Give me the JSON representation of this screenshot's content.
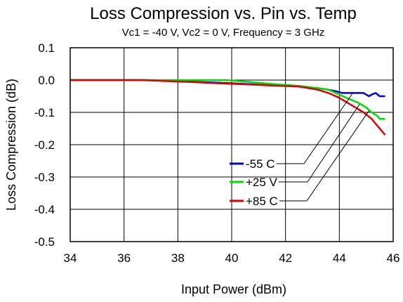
{
  "chart_data": {
    "type": "line",
    "title": "Loss Compression vs. Pin vs. Temp",
    "subtitle": "Vc1 = -40 V, Vc2 = 0 V, Frequency = 3 GHz",
    "xlabel": "Input Power (dBm)",
    "ylabel": "Loss Compression (dB)",
    "xlim": [
      34,
      46
    ],
    "ylim": [
      -0.5,
      0.1
    ],
    "xticks": [
      34,
      36,
      38,
      40,
      42,
      44,
      46
    ],
    "yticks": [
      0.1,
      0.0,
      -0.1,
      -0.2,
      -0.3,
      -0.4,
      -0.5
    ],
    "ytick_labels": [
      "0.1",
      "0.0",
      "-0.1",
      "-0.2",
      "-0.3",
      "-0.4",
      "-0.5"
    ],
    "grid": true,
    "legend_position": "center-right",
    "series": [
      {
        "name": "-55 C",
        "color": "#0000cc",
        "x": [
          34,
          35,
          36,
          36.7,
          37.5,
          38.5,
          39.5,
          40.5,
          41.5,
          42.5,
          43.2,
          43.6,
          43.9,
          44.1,
          44.3,
          44.6,
          44.9,
          45.0,
          45.1,
          45.2,
          45.35,
          45.5,
          45.7
        ],
        "y": [
          0.0,
          0.0,
          0.0,
          0.0,
          -0.002,
          -0.005,
          -0.008,
          -0.012,
          -0.016,
          -0.02,
          -0.025,
          -0.03,
          -0.035,
          -0.04,
          -0.04,
          -0.04,
          -0.04,
          -0.045,
          -0.05,
          -0.045,
          -0.04,
          -0.05,
          -0.05
        ]
      },
      {
        "name": "+25 V",
        "color": "#00dd00",
        "x": [
          34,
          35,
          36,
          36.7,
          37.5,
          38.5,
          39.8,
          40.5,
          41.5,
          42.5,
          43.2,
          43.6,
          44.0,
          44.4,
          44.7,
          45.0,
          45.2,
          45.4,
          45.5,
          45.7
        ],
        "y": [
          0.0,
          0.0,
          0.0,
          0.0,
          0.0,
          0.0,
          0.0,
          -0.005,
          -0.012,
          -0.018,
          -0.025,
          -0.03,
          -0.045,
          -0.06,
          -0.07,
          -0.085,
          -0.1,
          -0.11,
          -0.12,
          -0.12
        ]
      },
      {
        "name": "+85 C",
        "color": "#dd0000",
        "x": [
          34,
          35,
          36,
          36.7,
          37.5,
          38.5,
          39.5,
          40.5,
          41.5,
          42.5,
          43.2,
          43.6,
          44.0,
          44.3,
          44.6,
          44.9,
          45.2,
          45.4,
          45.6,
          45.7
        ],
        "y": [
          0.0,
          0.0,
          0.0,
          0.0,
          -0.003,
          -0.006,
          -0.01,
          -0.013,
          -0.017,
          -0.02,
          -0.03,
          -0.04,
          -0.055,
          -0.07,
          -0.085,
          -0.1,
          -0.12,
          -0.14,
          -0.16,
          -0.17
        ]
      }
    ]
  }
}
